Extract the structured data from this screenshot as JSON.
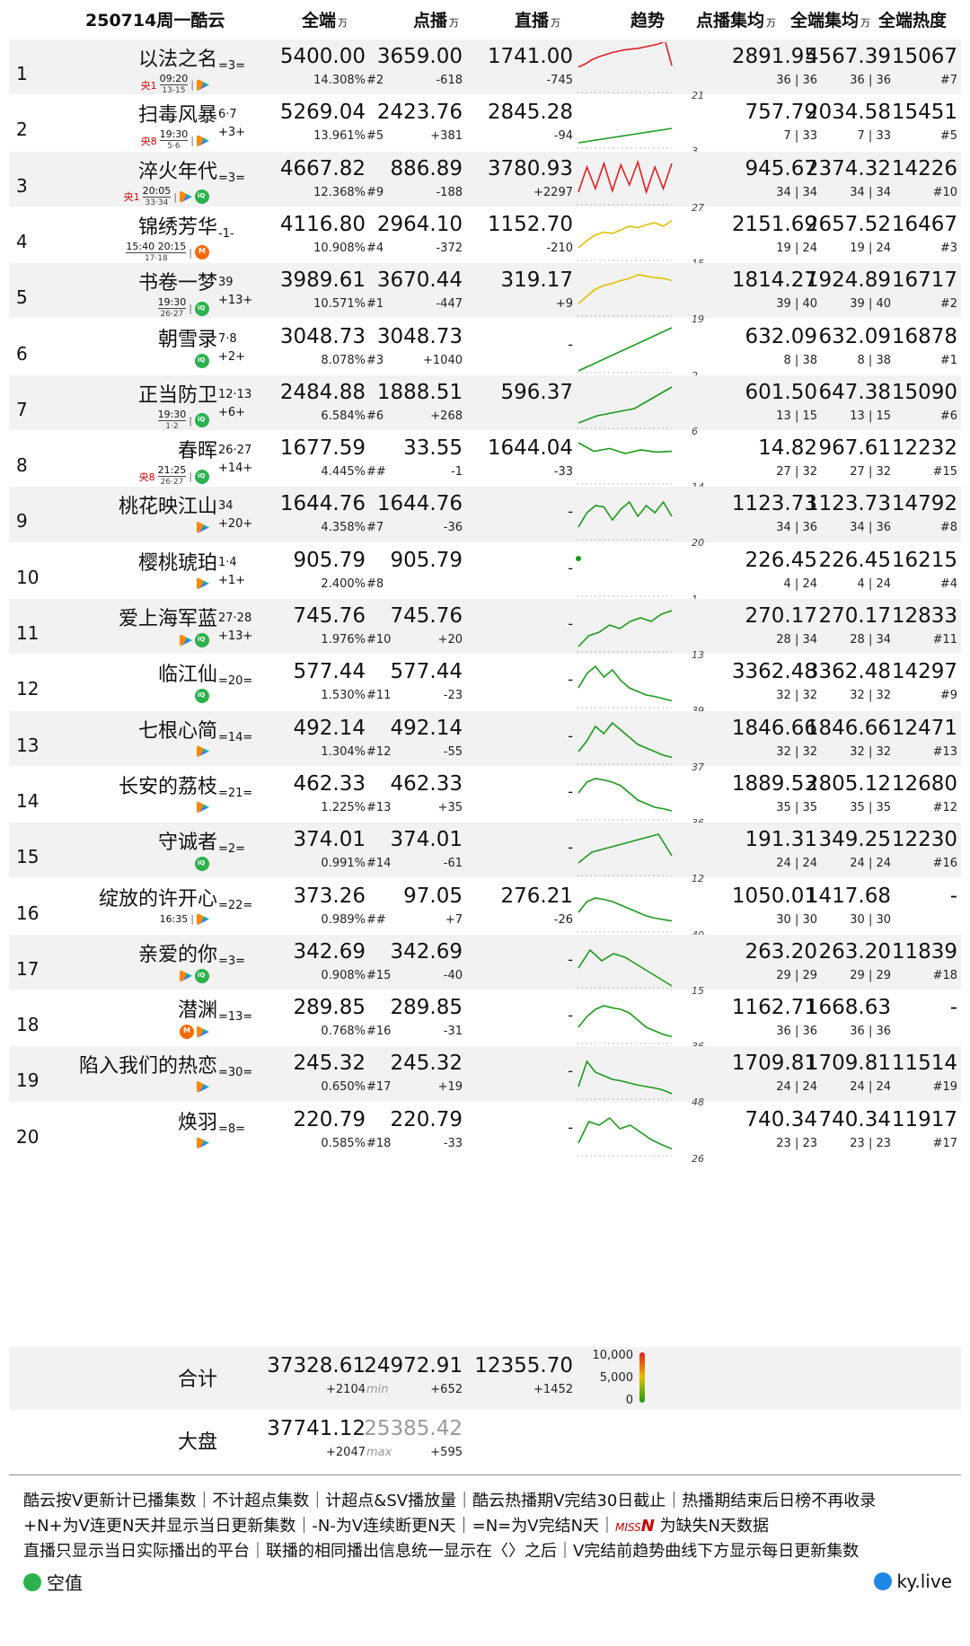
{
  "header": {
    "title": "250714周一酷云",
    "cols": [
      {
        "label": "全端",
        "unit": "万"
      },
      {
        "label": "点播",
        "unit": "万"
      },
      {
        "label": "直播",
        "unit": "万"
      },
      {
        "label": "趋势",
        "unit": ""
      },
      {
        "label": "点播集均",
        "unit": "万"
      },
      {
        "label": "全端集均",
        "unit": "万"
      },
      {
        "label": "全端热度",
        "unit": ""
      }
    ]
  },
  "chart_data": {
    "type": "table",
    "rows": [
      {
        "rank": "1",
        "title": "以法之名",
        "ep": "",
        "delta": "=3=",
        "channel": "央1",
        "time": "09:20",
        "time_sub": "13-15",
        "platforms": [
          "youku"
        ],
        "total": "5400.00",
        "total_pct": "14.308%",
        "vod": "3659.00",
        "vod_rank": "#2",
        "vod_delta": "-618",
        "live": "1741.00",
        "live_delta": "-745",
        "trend_n": "21",
        "vod_avg": "2891.95",
        "vod_avg_sub": "36 | 36",
        "all_avg": "4567.39",
        "all_avg_sub": "36 | 36",
        "heat": "15067",
        "heat_rank": "#7",
        "trend": [
          38,
          42,
          48,
          52,
          55,
          58,
          60,
          62,
          63,
          64,
          66,
          68,
          70,
          74,
          40
        ]
      },
      {
        "rank": "2",
        "title": "扫毒风暴",
        "ep": "6·7",
        "delta": "+3+",
        "channel": "央8",
        "time": "19:30",
        "time_sub": "5·6",
        "platforms": [
          "youku"
        ],
        "total": "5269.04",
        "total_pct": "13.961%",
        "vod": "2423.76",
        "vod_rank": "#5",
        "vod_delta": "+381",
        "live": "2845.28",
        "live_delta": "-94",
        "trend_n": "3",
        "vod_avg": "757.79",
        "vod_avg_sub": "7 | 33",
        "all_avg": "2034.58",
        "all_avg_sub": "7 | 33",
        "heat": "15451",
        "heat_rank": "#5",
        "trend": [
          10,
          20,
          30
        ]
      },
      {
        "rank": "3",
        "title": "淬火年代",
        "ep": "",
        "delta": "=3=",
        "channel": "央1",
        "time": "20:05",
        "time_sub": "33·34",
        "platforms": [
          "youku",
          "iqiyi"
        ],
        "total": "4667.82",
        "total_pct": "12.368%",
        "vod": "886.89",
        "vod_rank": "#9",
        "vod_delta": "-188",
        "live": "3780.93",
        "live_delta": "+2297",
        "trend_n": "27",
        "vod_avg": "945.67",
        "vod_avg_sub": "34 | 34",
        "all_avg": "2374.32",
        "all_avg_sub": "34 | 34",
        "heat": "14226",
        "heat_rank": "#10",
        "trend": [
          20,
          55,
          25,
          60,
          22,
          58,
          30,
          62,
          20,
          55,
          25,
          60
        ]
      },
      {
        "rank": "4",
        "title": "锦绣芳华",
        "ep": "",
        "delta": "-1-",
        "channel": "",
        "time": "15:40 20:15",
        "time_sub": "17·18",
        "platforms": [
          "mgtv"
        ],
        "total": "4116.80",
        "total_pct": "10.908%",
        "vod": "2964.10",
        "vod_rank": "#4",
        "vod_delta": "-372",
        "live": "1152.70",
        "live_delta": "-210",
        "trend_n": "15",
        "vod_avg": "2151.69",
        "vod_avg_sub": "19 | 24",
        "all_avg": "2657.52",
        "all_avg_sub": "19 | 24",
        "heat": "16467",
        "heat_rank": "#3",
        "trend": [
          20,
          30,
          38,
          42,
          40,
          45,
          50,
          48,
          52,
          55,
          50,
          58
        ]
      },
      {
        "rank": "5",
        "title": "书卷一梦",
        "ep": "39",
        "delta": "+13+",
        "channel": "",
        "time": "19:30",
        "time_sub": "26·27",
        "platforms": [
          "iqiyi"
        ],
        "total": "3989.61",
        "total_pct": "10.571%",
        "vod": "3670.44",
        "vod_rank": "#1",
        "vod_delta": "-447",
        "live": "319.17",
        "live_delta": "+9",
        "trend_n": "19",
        "vod_avg": "1814.27",
        "vod_avg_sub": "39 | 40",
        "all_avg": "1924.89",
        "all_avg_sub": "39 | 40",
        "heat": "16717",
        "heat_rank": "#2",
        "trend": [
          20,
          30,
          40,
          45,
          48,
          52,
          55,
          60,
          58,
          56,
          55,
          52
        ]
      },
      {
        "rank": "6",
        "title": "朝雪录",
        "ep": "7·8",
        "delta": "+2+",
        "channel": "",
        "time": "",
        "time_sub": "",
        "platforms": [
          "iqiyi"
        ],
        "total": "3048.73",
        "total_pct": "8.078%",
        "vod": "3048.73",
        "vod_rank": "#3",
        "vod_delta": "+1040",
        "live": "-",
        "live_delta": "",
        "trend_n": "2",
        "vod_avg": "632.09",
        "vod_avg_sub": "8 | 38",
        "all_avg": "632.09",
        "all_avg_sub": "8 | 38",
        "heat": "16878",
        "heat_rank": "#1",
        "trend": [
          5,
          65
        ]
      },
      {
        "rank": "7",
        "title": "正当防卫",
        "ep": "12·13",
        "delta": "+6+",
        "channel": "",
        "time": "19:30",
        "time_sub": "1·2",
        "platforms": [
          "iqiyi"
        ],
        "total": "2484.88",
        "total_pct": "6.584%",
        "vod": "1888.51",
        "vod_rank": "#6",
        "vod_delta": "+268",
        "live": "596.37",
        "live_delta": "",
        "trend_n": "6",
        "vod_avg": "601.50",
        "vod_avg_sub": "13 | 15",
        "all_avg": "647.38",
        "all_avg_sub": "13 | 15",
        "heat": "15090",
        "heat_rank": "#6",
        "trend": [
          10,
          20,
          25,
          30,
          45,
          60
        ]
      },
      {
        "rank": "8",
        "title": "春晖",
        "ep": "26·27",
        "delta": "+14+",
        "channel": "央8",
        "time": "21:25",
        "time_sub": "26·27",
        "platforms": [
          "iqiyi"
        ],
        "total": "1677.59",
        "total_pct": "4.445%",
        "vod": "33.55",
        "vod_rank": "##",
        "vod_delta": "-1",
        "live": "1644.04",
        "live_delta": "-33",
        "trend_n": "14",
        "vod_avg": "14.82",
        "vod_avg_sub": "27 | 32",
        "all_avg": "967.61",
        "all_avg_sub": "27 | 32",
        "heat": "12232",
        "heat_rank": "#15",
        "trend": [
          60,
          48,
          52,
          45,
          50,
          47,
          48
        ]
      },
      {
        "rank": "9",
        "title": "桃花映江山",
        "ep": "34",
        "delta": "+20+",
        "channel": "",
        "time": "",
        "time_sub": "",
        "platforms": [
          "youku"
        ],
        "total": "1644.76",
        "total_pct": "4.358%",
        "vod": "1644.76",
        "vod_rank": "#7",
        "vod_delta": "-36",
        "live": "-",
        "live_delta": "",
        "trend_n": "20",
        "vod_avg": "1123.73",
        "vod_avg_sub": "34 | 36",
        "all_avg": "1123.73",
        "all_avg_sub": "34 | 36",
        "heat": "14792",
        "heat_rank": "#8",
        "trend": [
          20,
          40,
          50,
          48,
          30,
          45,
          55,
          35,
          50,
          40,
          55,
          35
        ]
      },
      {
        "rank": "10",
        "title": "樱桃琥珀",
        "ep": "1·4",
        "delta": "+1+",
        "channel": "",
        "time": "",
        "time_sub": "",
        "platforms": [
          "youku"
        ],
        "total": "905.79",
        "total_pct": "2.400%",
        "vod": "905.79",
        "vod_rank": "#8",
        "vod_delta": "",
        "live": "-",
        "live_delta": "",
        "trend_n": "1",
        "vod_avg": "226.45",
        "vod_avg_sub": "4 | 24",
        "all_avg": "226.45",
        "all_avg_sub": "4 | 24",
        "heat": "16215",
        "heat_rank": "#4",
        "trend": [
          55
        ]
      },
      {
        "rank": "11",
        "title": "爱上海军蓝",
        "ep": "27·28",
        "delta": "+13+",
        "channel": "",
        "time": "",
        "time_sub": "",
        "platforms": [
          "youku",
          "iqiyi"
        ],
        "total": "745.76",
        "total_pct": "1.976%",
        "vod": "745.76",
        "vod_rank": "#10",
        "vod_delta": "+20",
        "live": "-",
        "live_delta": "",
        "trend_n": "13",
        "vod_avg": "270.17",
        "vod_avg_sub": "28 | 34",
        "all_avg": "270.17",
        "all_avg_sub": "28 | 34",
        "heat": "12833",
        "heat_rank": "#11",
        "trend": [
          10,
          25,
          30,
          40,
          35,
          45,
          50,
          45,
          55,
          60
        ]
      },
      {
        "rank": "12",
        "title": "临江仙",
        "ep": "",
        "delta": "=20=",
        "channel": "",
        "time": "",
        "time_sub": "",
        "platforms": [
          "iqiyi"
        ],
        "total": "577.44",
        "total_pct": "1.530%",
        "vod": "577.44",
        "vod_rank": "#11",
        "vod_delta": "-23",
        "live": "-",
        "live_delta": "",
        "trend_n": "39",
        "vod_avg": "3362.48",
        "vod_avg_sub": "32 | 32",
        "all_avg": "3362.48",
        "all_avg_sub": "32 | 32",
        "heat": "14297",
        "heat_rank": "#9",
        "trend": [
          30,
          50,
          60,
          45,
          55,
          40,
          30,
          25,
          20,
          18,
          15,
          12
        ]
      },
      {
        "rank": "13",
        "title": "七根心简",
        "ep": "",
        "delta": "=14=",
        "channel": "",
        "time": "",
        "time_sub": "",
        "platforms": [
          "youku"
        ],
        "total": "492.14",
        "total_pct": "1.304%",
        "vod": "492.14",
        "vod_rank": "#12",
        "vod_delta": "-55",
        "live": "-",
        "live_delta": "",
        "trend_n": "37",
        "vod_avg": "1846.66",
        "vod_avg_sub": "32 | 32",
        "all_avg": "1846.66",
        "all_avg_sub": "32 | 32",
        "heat": "12471",
        "heat_rank": "#13",
        "trend": [
          20,
          35,
          55,
          45,
          60,
          50,
          40,
          30,
          25,
          20,
          15,
          12
        ]
      },
      {
        "rank": "14",
        "title": "长安的荔枝",
        "ep": "",
        "delta": "=21=",
        "channel": "",
        "time": "",
        "time_sub": "",
        "platforms": [
          "youku"
        ],
        "total": "462.33",
        "total_pct": "1.225%",
        "vod": "462.33",
        "vod_rank": "#13",
        "vod_delta": "+35",
        "live": "-",
        "live_delta": "",
        "trend_n": "36",
        "vod_avg": "1889.53",
        "vod_avg_sub": "35 | 35",
        "all_avg": "2805.12",
        "all_avg_sub": "35 | 35",
        "heat": "12680",
        "heat_rank": "#12",
        "trend": [
          40,
          55,
          60,
          58,
          55,
          50,
          40,
          30,
          25,
          20,
          18,
          15
        ]
      },
      {
        "rank": "15",
        "title": "守诚者",
        "ep": "",
        "delta": "=2=",
        "channel": "",
        "time": "",
        "time_sub": "",
        "platforms": [
          "iqiyi"
        ],
        "total": "374.01",
        "total_pct": "0.991%",
        "vod": "374.01",
        "vod_rank": "#14",
        "vod_delta": "-61",
        "live": "-",
        "live_delta": "",
        "trend_n": "12",
        "vod_avg": "191.31",
        "vod_avg_sub": "24 | 24",
        "all_avg": "349.25",
        "all_avg_sub": "24 | 24",
        "heat": "12230",
        "heat_rank": "#16",
        "trend": [
          20,
          35,
          40,
          45,
          50,
          55,
          60,
          30
        ]
      },
      {
        "rank": "16",
        "title": "绽放的许开心",
        "ep": "",
        "delta": "=22=",
        "channel": "",
        "time": "16:35",
        "time_sub": "",
        "platforms": [
          "youku"
        ],
        "total": "373.26",
        "total_pct": "0.989%",
        "vod": "97.05",
        "vod_rank": "##",
        "vod_delta": "+7",
        "live": "276.21",
        "live_delta": "-26",
        "trend_n": "40",
        "vod_avg": "1050.01",
        "vod_avg_sub": "30 | 30",
        "all_avg": "1417.68",
        "all_avg_sub": "30 | 30",
        "heat": "-",
        "heat_rank": "",
        "trend": [
          30,
          45,
          50,
          48,
          45,
          40,
          35,
          30,
          25,
          22,
          20,
          18
        ]
      },
      {
        "rank": "17",
        "title": "亲爱的你",
        "ep": "",
        "delta": "=3=",
        "channel": "",
        "time": "",
        "time_sub": "",
        "platforms": [
          "youku",
          "iqiyi"
        ],
        "total": "342.69",
        "total_pct": "0.908%",
        "vod": "342.69",
        "vod_rank": "#15",
        "vod_delta": "-40",
        "live": "-",
        "live_delta": "",
        "trend_n": "15",
        "vod_avg": "263.20",
        "vod_avg_sub": "29 | 29",
        "all_avg": "263.20",
        "all_avg_sub": "29 | 29",
        "heat": "11839",
        "heat_rank": "#18",
        "trend": [
          30,
          55,
          40,
          50,
          45,
          35,
          25,
          15,
          5
        ]
      },
      {
        "rank": "18",
        "title": "潜渊",
        "ep": "",
        "delta": "=13=",
        "channel": "",
        "time": "",
        "time_sub": "",
        "platforms": [
          "mgtv",
          "youku"
        ],
        "total": "289.85",
        "total_pct": "0.768%",
        "vod": "289.85",
        "vod_rank": "#16",
        "vod_delta": "-31",
        "live": "-",
        "live_delta": "",
        "trend_n": "36",
        "vod_avg": "1162.71",
        "vod_avg_sub": "36 | 36",
        "all_avg": "1668.63",
        "all_avg_sub": "36 | 36",
        "heat": "-",
        "heat_rank": "",
        "trend": [
          25,
          40,
          50,
          55,
          52,
          50,
          45,
          35,
          25,
          20,
          15,
          12
        ]
      },
      {
        "rank": "19",
        "title": "陷入我们的热恋",
        "ep": "",
        "delta": "=30=",
        "channel": "",
        "time": "",
        "time_sub": "",
        "platforms": [
          "youku"
        ],
        "total": "245.32",
        "total_pct": "0.650%",
        "vod": "245.32",
        "vod_rank": "#17",
        "vod_delta": "+19",
        "live": "-",
        "live_delta": "",
        "trend_n": "48",
        "vod_avg": "1709.81",
        "vod_avg_sub": "24 | 24",
        "all_avg": "1709.81",
        "all_avg_sub": "24 | 24",
        "heat": "11514",
        "heat_rank": "#19",
        "trend": [
          20,
          55,
          40,
          35,
          30,
          28,
          25,
          22,
          20,
          18,
          15,
          10
        ]
      },
      {
        "rank": "20",
        "title": "焕羽",
        "ep": "",
        "delta": "=8=",
        "channel": "",
        "time": "",
        "time_sub": "",
        "platforms": [
          "youku"
        ],
        "total": "220.79",
        "total_pct": "0.585%",
        "vod": "220.79",
        "vod_rank": "#18",
        "vod_delta": "-33",
        "live": "-",
        "live_delta": "",
        "trend_n": "26",
        "vod_avg": "740.34",
        "vod_avg_sub": "23 | 23",
        "all_avg": "740.34",
        "all_avg_sub": "23 | 23",
        "heat": "11917",
        "heat_rank": "#17",
        "trend": [
          20,
          50,
          45,
          55,
          40,
          45,
          35,
          25,
          18,
          12
        ]
      }
    ],
    "summary": {
      "total_label": "合计",
      "total": "37328.61",
      "total_delta": "+2104",
      "vod": "24972.91",
      "vod_note": "min",
      "vod_delta": "+652",
      "live": "12355.70",
      "live_delta": "+1452",
      "scale": [
        "10,000",
        "5,000",
        "0"
      ],
      "market_label": "大盘",
      "market": "37741.12",
      "market_delta": "+2047",
      "market_vod": "25385.42",
      "market_vod_note": "max",
      "market_vod_delta": "+595"
    }
  },
  "footer": {
    "line1": "酷云按V更新计已播集数｜不计超点集数｜计超点&SV播放量｜酷云热播期V完结30日截止｜热播期结束后日榜不再收录",
    "line2a": "+N+为V连更N天并显示当日更新集数｜-N-为V连续断更N天｜=N=为V完结N天｜",
    "line2miss": "MISS",
    "line2n": "N",
    "line2b": " 为缺失N天数据",
    "line3": "直播只显示当日实际播出的平台｜联播的相同播出信息统一显示在〈〉之后｜V完结前趋势曲线下方显示每日更新集数",
    "brand_left": "空值",
    "brand_right": "ky.live"
  },
  "colors": {
    "row_alt": "#f2f2f2",
    "trend_high": "#e02020",
    "trend_mid": "#e0c000",
    "trend_low": "#1a9a1a"
  }
}
